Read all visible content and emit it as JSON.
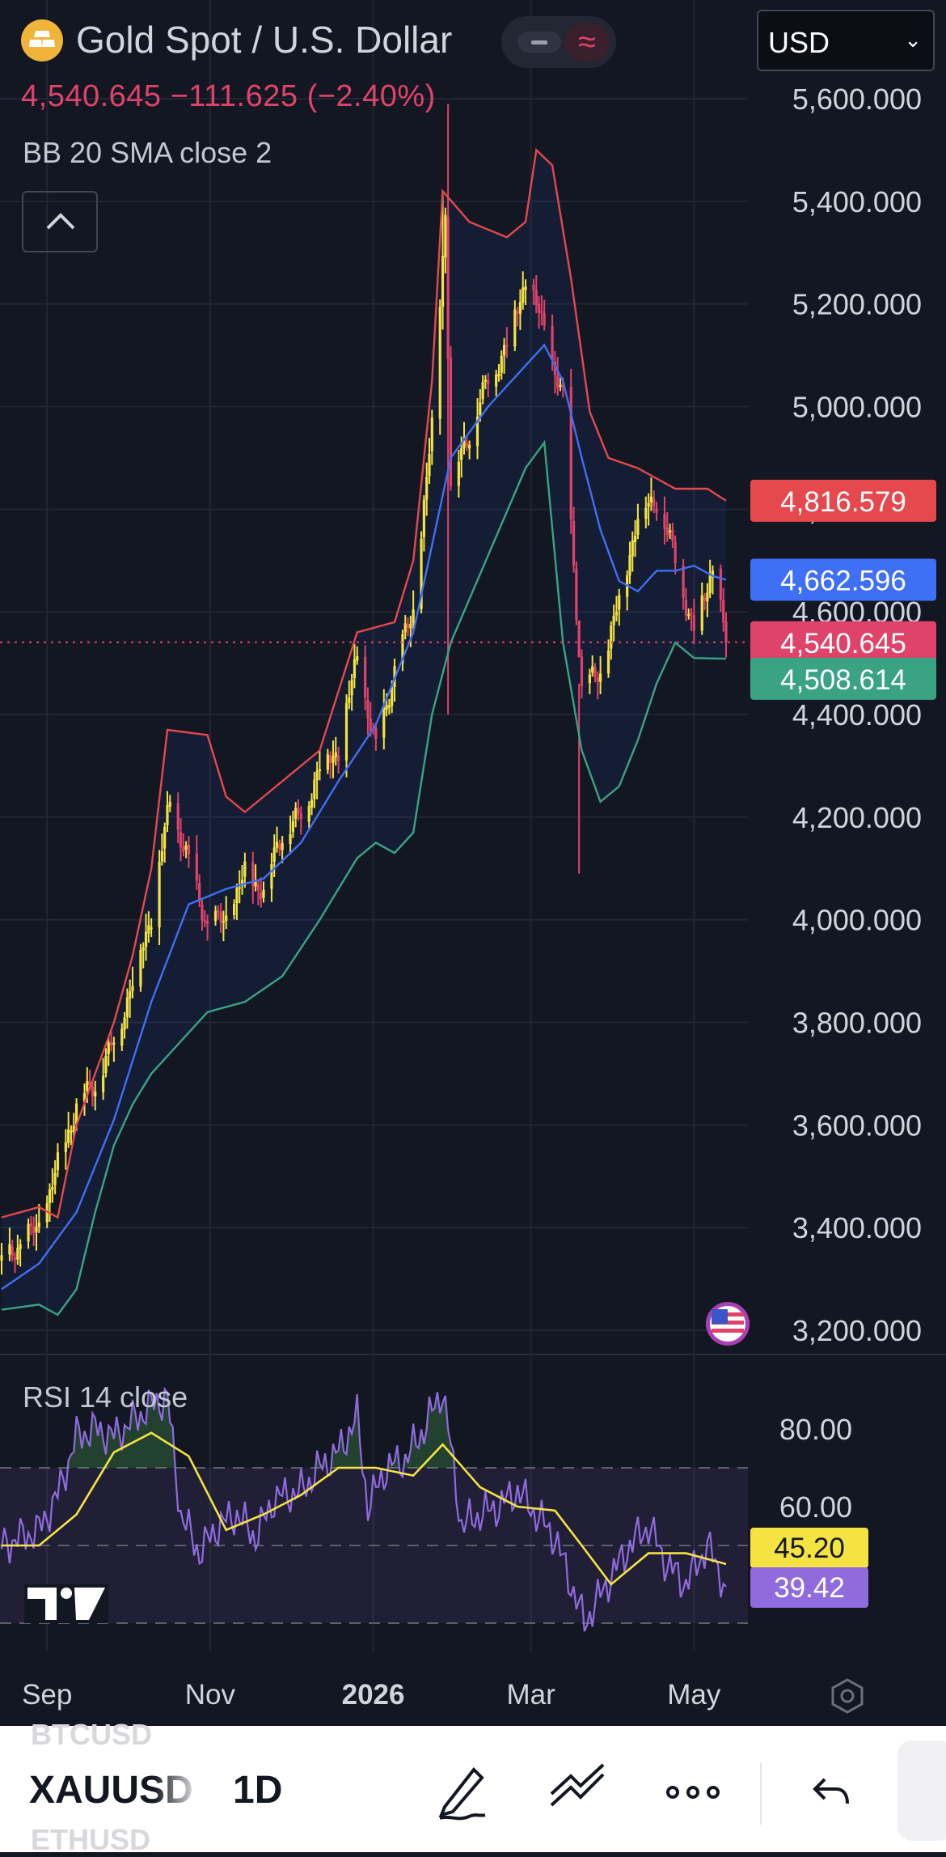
{
  "header": {
    "title": "Gold Spot / U.S. Dollar",
    "price_line": "4,540.645  −111.625 (−2.40%)",
    "indicator_label": "BB 20 SMA close 2",
    "currency": "USD",
    "mode_icon_1": "minus-icon",
    "mode_icon_2": "wave-icon"
  },
  "rsi_panel": {
    "label": "RSI 14 close"
  },
  "colors": {
    "background": "#131722",
    "up": "#f5e342",
    "down": "#e0436a",
    "bb_upper": "#e5484d",
    "bb_basis": "#3f6ff5",
    "bb_lower": "#3aa384",
    "rsi": "#8f6bde",
    "rsi_ma": "#f5e342"
  },
  "bottom_bar": {
    "ghost_above": "BTCUSD",
    "symbol": "XAUUSD",
    "ghost_below": "ETHUSD",
    "interval": "1D",
    "icons": [
      "pen-icon",
      "trend-lines-icon",
      "more-icon",
      "undo-icon"
    ]
  },
  "chart_data": [
    {
      "type": "candlestick",
      "title": "Gold Spot / U.S. Dollar",
      "x_range": [
        "2025-08-15",
        "2026-05-13"
      ],
      "x_ticks": [
        {
          "date": "2025-09-01",
          "label": "Sep"
        },
        {
          "date": "2025-11-01",
          "label": "Nov"
        },
        {
          "date": "2026-01-01",
          "label": "2026"
        },
        {
          "date": "2026-03-01",
          "label": "Mar"
        },
        {
          "date": "2026-05-01",
          "label": "May"
        }
      ],
      "ylim": [
        3120,
        5620
      ],
      "y_ticks": [
        3200,
        3400,
        3600,
        3800,
        4000,
        4200,
        4400,
        4600,
        4800,
        5000,
        5200,
        5400,
        5600
      ],
      "y_tick_labels": [
        "3,200.000",
        "3,400.000",
        "3,600.000",
        "3,800.000",
        "4,000.000",
        "4,200.000",
        "4,400.000",
        "4,600.000",
        "4,800.000",
        "5,000.000",
        "5,200.000",
        "5,400.000",
        "5,600.000"
      ],
      "grid": true,
      "close_path": [
        [
          "2025-08-15",
          3335
        ],
        [
          "2025-08-22",
          3370
        ],
        [
          "2025-08-29",
          3400
        ],
        [
          "2025-09-05",
          3520
        ],
        [
          "2025-09-12",
          3640
        ],
        [
          "2025-09-19",
          3680
        ],
        [
          "2025-09-26",
          3760
        ],
        [
          "2025-10-03",
          3880
        ],
        [
          "2025-10-10",
          4010
        ],
        [
          "2025-10-17",
          4230
        ],
        [
          "2025-10-24",
          4110
        ],
        [
          "2025-10-31",
          3990
        ],
        [
          "2025-11-07",
          4000
        ],
        [
          "2025-11-14",
          4090
        ],
        [
          "2025-11-21",
          4060
        ],
        [
          "2025-11-28",
          4170
        ],
        [
          "2025-12-05",
          4200
        ],
        [
          "2025-12-12",
          4300
        ],
        [
          "2025-12-19",
          4330
        ],
        [
          "2025-12-26",
          4510
        ],
        [
          "2026-01-02",
          4330
        ],
        [
          "2026-01-09",
          4490
        ],
        [
          "2026-01-16",
          4600
        ],
        [
          "2026-01-23",
          4960
        ],
        [
          "2026-01-28",
          5380
        ],
        [
          "2026-01-30",
          4850
        ],
        [
          "2026-02-06",
          4950
        ],
        [
          "2026-02-13",
          5050
        ],
        [
          "2026-02-20",
          5120
        ],
        [
          "2026-02-27",
          5250
        ],
        [
          "2026-03-06",
          5150
        ],
        [
          "2026-03-13",
          5010
        ],
        [
          "2026-03-20",
          4450
        ],
        [
          "2026-03-27",
          4480
        ],
        [
          "2026-04-03",
          4620
        ],
        [
          "2026-04-10",
          4790
        ],
        [
          "2026-04-17",
          4820
        ],
        [
          "2026-04-24",
          4700
        ],
        [
          "2026-05-01",
          4560
        ],
        [
          "2026-05-08",
          4690
        ],
        [
          "2026-05-13",
          4540
        ]
      ],
      "wick_events": [
        {
          "date": "2026-01-29",
          "high": 5590,
          "low": 4400
        },
        {
          "date": "2026-03-19",
          "high": 4460,
          "low": 4090
        },
        {
          "date": "2026-01-27",
          "high": 5420,
          "low": 5150
        }
      ],
      "bb_upper": [
        [
          "2025-08-15",
          3420
        ],
        [
          "2025-08-29",
          3440
        ],
        [
          "2025-09-05",
          3420
        ],
        [
          "2025-09-12",
          3600
        ],
        [
          "2025-09-19",
          3700
        ],
        [
          "2025-09-26",
          3800
        ],
        [
          "2025-10-03",
          3930
        ],
        [
          "2025-10-10",
          4100
        ],
        [
          "2025-10-16",
          4370
        ],
        [
          "2025-10-31",
          4360
        ],
        [
          "2025-11-07",
          4240
        ],
        [
          "2025-11-14",
          4210
        ],
        [
          "2025-11-21",
          4240
        ],
        [
          "2025-11-28",
          4270
        ],
        [
          "2025-12-12",
          4330
        ],
        [
          "2025-12-26",
          4560
        ],
        [
          "2026-01-09",
          4580
        ],
        [
          "2026-01-16",
          4700
        ],
        [
          "2026-01-23",
          5050
        ],
        [
          "2026-01-27",
          5420
        ],
        [
          "2026-02-06",
          5360
        ],
        [
          "2026-02-20",
          5330
        ],
        [
          "2026-02-27",
          5360
        ],
        [
          "2026-03-03",
          5500
        ],
        [
          "2026-03-09",
          5470
        ],
        [
          "2026-03-16",
          5250
        ],
        [
          "2026-03-23",
          4990
        ],
        [
          "2026-03-30",
          4900
        ],
        [
          "2026-04-10",
          4880
        ],
        [
          "2026-04-24",
          4840
        ],
        [
          "2026-05-06",
          4840
        ],
        [
          "2026-05-13",
          4816.579
        ]
      ],
      "bb_basis": [
        [
          "2025-08-15",
          3280
        ],
        [
          "2025-08-29",
          3330
        ],
        [
          "2025-09-12",
          3430
        ],
        [
          "2025-09-26",
          3610
        ],
        [
          "2025-10-10",
          3840
        ],
        [
          "2025-10-24",
          4030
        ],
        [
          "2025-11-07",
          4060
        ],
        [
          "2025-11-21",
          4080
        ],
        [
          "2025-12-05",
          4150
        ],
        [
          "2025-12-19",
          4270
        ],
        [
          "2026-01-02",
          4380
        ],
        [
          "2026-01-16",
          4560
        ],
        [
          "2026-01-30",
          4900
        ],
        [
          "2026-02-13",
          5000
        ],
        [
          "2026-02-27",
          5080
        ],
        [
          "2026-03-06",
          5120
        ],
        [
          "2026-03-13",
          5050
        ],
        [
          "2026-03-20",
          4900
        ],
        [
          "2026-03-27",
          4760
        ],
        [
          "2026-04-03",
          4660
        ],
        [
          "2026-04-10",
          4640
        ],
        [
          "2026-04-17",
          4680
        ],
        [
          "2026-04-24",
          4680
        ],
        [
          "2026-05-01",
          4690
        ],
        [
          "2026-05-08",
          4670
        ],
        [
          "2026-05-13",
          4662.596
        ]
      ],
      "bb_lower": [
        [
          "2025-08-15",
          3240
        ],
        [
          "2025-08-29",
          3250
        ],
        [
          "2025-09-05",
          3230
        ],
        [
          "2025-09-12",
          3280
        ],
        [
          "2025-09-19",
          3430
        ],
        [
          "2025-09-26",
          3560
        ],
        [
          "2025-10-03",
          3640
        ],
        [
          "2025-10-10",
          3700
        ],
        [
          "2025-10-17",
          3740
        ],
        [
          "2025-10-31",
          3820
        ],
        [
          "2025-11-14",
          3840
        ],
        [
          "2025-11-28",
          3890
        ],
        [
          "2025-12-12",
          4000
        ],
        [
          "2025-12-26",
          4120
        ],
        [
          "2026-01-02",
          4150
        ],
        [
          "2026-01-09",
          4130
        ],
        [
          "2026-01-16",
          4170
        ],
        [
          "2026-01-23",
          4400
        ],
        [
          "2026-01-30",
          4540
        ],
        [
          "2026-02-13",
          4710
        ],
        [
          "2026-02-27",
          4880
        ],
        [
          "2026-03-06",
          4930
        ],
        [
          "2026-03-13",
          4540
        ],
        [
          "2026-03-20",
          4330
        ],
        [
          "2026-03-27",
          4230
        ],
        [
          "2026-04-03",
          4260
        ],
        [
          "2026-04-10",
          4350
        ],
        [
          "2026-04-17",
          4460
        ],
        [
          "2026-04-24",
          4540
        ],
        [
          "2026-05-01",
          4510
        ],
        [
          "2026-05-13",
          4508.614
        ]
      ],
      "last_labels": {
        "bb_upper": "4,816.579",
        "bb_basis": "4,662.596",
        "close": "4,540.645",
        "bb_lower": "4,508.614"
      }
    },
    {
      "type": "line",
      "title": "RSI 14 close",
      "ylim": [
        25,
        95
      ],
      "y_ticks": [
        60,
        80
      ],
      "y_tick_labels": [
        "60.00",
        "80.00"
      ],
      "bands": [
        70,
        50,
        30
      ],
      "rsi": [
        [
          "2025-08-15",
          50
        ],
        [
          "2025-08-29",
          54
        ],
        [
          "2025-09-05",
          63
        ],
        [
          "2025-09-12",
          78
        ],
        [
          "2025-09-19",
          80
        ],
        [
          "2025-09-26",
          78
        ],
        [
          "2025-10-03",
          82
        ],
        [
          "2025-10-10",
          86
        ],
        [
          "2025-10-16",
          88
        ],
        [
          "2025-10-21",
          58
        ],
        [
          "2025-10-28",
          48
        ],
        [
          "2025-11-04",
          55
        ],
        [
          "2025-11-11",
          58
        ],
        [
          "2025-11-18",
          52
        ],
        [
          "2025-11-25",
          62
        ],
        [
          "2025-12-05",
          64
        ],
        [
          "2025-12-12",
          70
        ],
        [
          "2025-12-19",
          74
        ],
        [
          "2025-12-26",
          83
        ],
        [
          "2025-12-30",
          60
        ],
        [
          "2026-01-06",
          70
        ],
        [
          "2026-01-13",
          72
        ],
        [
          "2026-01-20",
          80
        ],
        [
          "2026-01-27",
          90
        ],
        [
          "2026-02-03",
          55
        ],
        [
          "2026-02-10",
          58
        ],
        [
          "2026-02-17",
          60
        ],
        [
          "2026-02-24",
          64
        ],
        [
          "2026-03-03",
          58
        ],
        [
          "2026-03-10",
          52
        ],
        [
          "2026-03-17",
          38
        ],
        [
          "2026-03-21",
          30
        ],
        [
          "2026-03-31",
          42
        ],
        [
          "2026-04-07",
          50
        ],
        [
          "2026-04-14",
          55
        ],
        [
          "2026-04-21",
          45
        ],
        [
          "2026-04-28",
          40
        ],
        [
          "2026-05-06",
          50
        ],
        [
          "2026-05-13",
          39.42
        ]
      ],
      "rsi_ma": [
        [
          "2025-08-15",
          50
        ],
        [
          "2025-08-29",
          50
        ],
        [
          "2025-09-12",
          58
        ],
        [
          "2025-09-26",
          74
        ],
        [
          "2025-10-10",
          79
        ],
        [
          "2025-10-24",
          73
        ],
        [
          "2025-11-07",
          54
        ],
        [
          "2025-11-21",
          58
        ],
        [
          "2025-12-05",
          63
        ],
        [
          "2025-12-19",
          70
        ],
        [
          "2026-01-02",
          70
        ],
        [
          "2026-01-16",
          68
        ],
        [
          "2026-01-27",
          76
        ],
        [
          "2026-02-10",
          65
        ],
        [
          "2026-02-24",
          60
        ],
        [
          "2026-03-10",
          59
        ],
        [
          "2026-03-20",
          50
        ],
        [
          "2026-03-31",
          40
        ],
        [
          "2026-04-14",
          48
        ],
        [
          "2026-04-28",
          48
        ],
        [
          "2026-05-13",
          45.2
        ]
      ],
      "last_labels": {
        "rsi_ma": "45.20",
        "rsi": "39.42"
      }
    }
  ]
}
